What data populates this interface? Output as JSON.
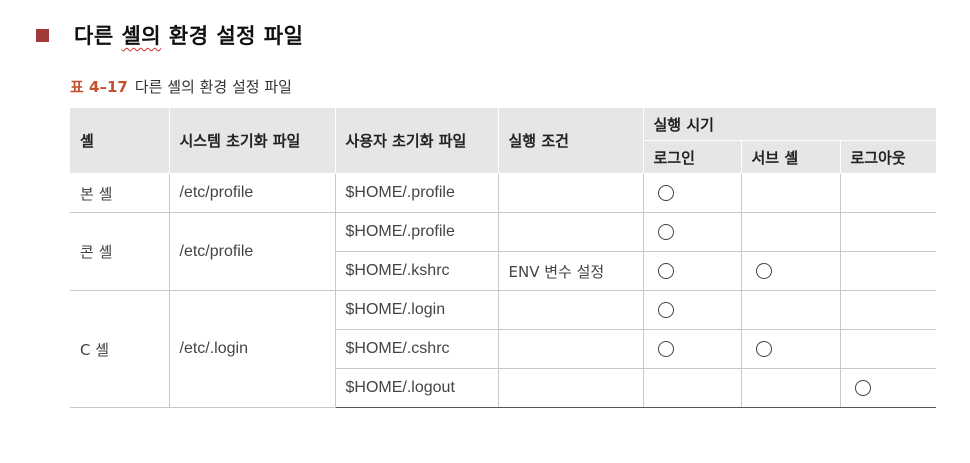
{
  "heading": {
    "before": "다른 ",
    "squiggle": "셸의",
    "after": " 환경 설정 파일"
  },
  "caption": {
    "label": "표 4–17",
    "title": "다른 셸의 환경 설정 파일"
  },
  "table": {
    "headers": {
      "shell": "셸",
      "system_init": "시스템 초기화 파일",
      "user_init": "사용자 초기화 파일",
      "condition": "실행 조건",
      "timing": "실행 시기",
      "login": "로그인",
      "subshell": "서브 셸",
      "logout": "로그아웃"
    },
    "mark_symbol": "○",
    "groups": [
      {
        "shell": "본 셸",
        "system_file": "/etc/profile",
        "rows": [
          {
            "user_file": "$HOME/.profile",
            "condition": "",
            "login": true,
            "subshell": false,
            "logout": false
          }
        ]
      },
      {
        "shell": "콘 셸",
        "system_file": "/etc/profile",
        "rows": [
          {
            "user_file": "$HOME/.profile",
            "condition": "",
            "login": true,
            "subshell": false,
            "logout": false
          },
          {
            "user_file": "$HOME/.kshrc",
            "condition": "ENV 변수 설정",
            "login": true,
            "subshell": true,
            "logout": false
          }
        ]
      },
      {
        "shell": "C 셸",
        "system_file": "/etc/.login",
        "rows": [
          {
            "user_file": "$HOME/.login",
            "condition": "",
            "login": true,
            "subshell": false,
            "logout": false
          },
          {
            "user_file": "$HOME/.cshrc",
            "condition": "",
            "login": true,
            "subshell": true,
            "logout": false
          },
          {
            "user_file": "$HOME/.logout",
            "condition": "",
            "login": false,
            "subshell": false,
            "logout": true
          }
        ]
      }
    ]
  }
}
